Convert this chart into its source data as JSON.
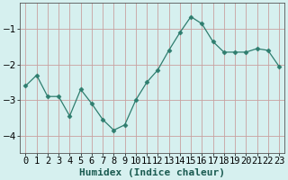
{
  "x": [
    0,
    1,
    2,
    3,
    4,
    5,
    6,
    7,
    8,
    9,
    10,
    11,
    12,
    13,
    14,
    15,
    16,
    17,
    18,
    19,
    20,
    21,
    22,
    23
  ],
  "y": [
    -2.6,
    -2.3,
    -2.9,
    -2.9,
    -3.45,
    -2.7,
    -3.1,
    -3.55,
    -3.85,
    -3.7,
    -3.0,
    -2.5,
    -2.15,
    -1.6,
    -1.1,
    -0.65,
    -0.85,
    -1.35,
    -1.65,
    -1.65,
    -1.65,
    -1.55,
    -1.6,
    -2.05
  ],
  "line_color": "#2e7d6e",
  "marker": "D",
  "marker_size": 2.5,
  "bg_color": "#d6f0ef",
  "grid_color": "#c8a0a0",
  "xlabel": "Humidex (Indice chaleur)",
  "ylim": [
    -4.5,
    -0.25
  ],
  "xlim": [
    -0.5,
    23.5
  ],
  "yticks": [
    -4,
    -3,
    -2,
    -1
  ],
  "xtick_labels": [
    "0",
    "1",
    "2",
    "3",
    "4",
    "5",
    "6",
    "7",
    "8",
    "9",
    "10",
    "11",
    "12",
    "13",
    "14",
    "15",
    "16",
    "17",
    "18",
    "19",
    "20",
    "21",
    "22",
    "23"
  ],
  "xlabel_fontsize": 8,
  "tick_fontsize": 7.5,
  "ylabel_fontsize": 8
}
